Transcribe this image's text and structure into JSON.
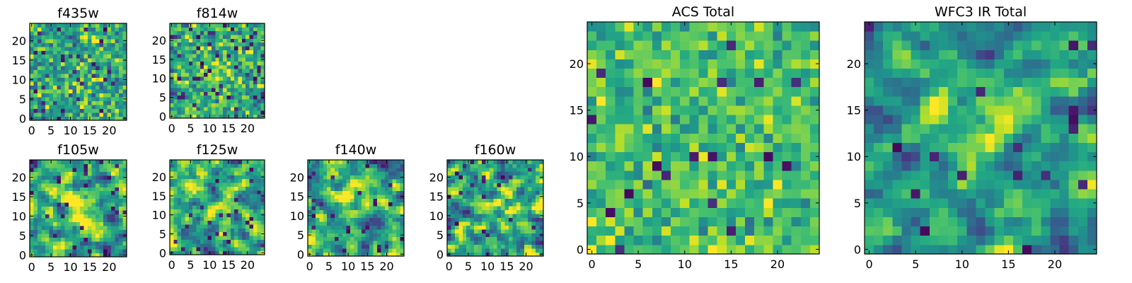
{
  "chart_data": [
    {
      "type": "heatmap",
      "title": "f435w",
      "xlim": [
        -0.5,
        24.5
      ],
      "ylim": [
        -0.5,
        24.5
      ],
      "x_ticks": [
        0,
        5,
        10,
        15,
        20
      ],
      "y_ticks": [
        0,
        5,
        10,
        15,
        20
      ],
      "x_tick_labels": [
        "0",
        "5",
        "10",
        "15",
        "20"
      ],
      "y_tick_labels": [
        "0",
        "5",
        "10",
        "15",
        "20"
      ],
      "colormap": "viridis",
      "grid_size": [
        25,
        25
      ],
      "texture": "pixel noise, no visible source"
    },
    {
      "type": "heatmap",
      "title": "f814w",
      "xlim": [
        -0.5,
        24.5
      ],
      "ylim": [
        -0.5,
        24.5
      ],
      "x_ticks": [
        0,
        5,
        10,
        15,
        20
      ],
      "y_ticks": [
        0,
        5,
        10,
        15,
        20
      ],
      "x_tick_labels": [
        "0",
        "5",
        "10",
        "15",
        "20"
      ],
      "y_tick_labels": [
        "0",
        "5",
        "10",
        "15",
        "20"
      ],
      "colormap": "viridis",
      "grid_size": [
        25,
        25
      ],
      "texture": "pixel noise, faint central source"
    },
    {
      "type": "heatmap",
      "title": "f105w",
      "xlim": [
        -0.5,
        24.5
      ],
      "ylim": [
        -0.5,
        24.5
      ],
      "x_ticks": [
        0,
        5,
        10,
        15,
        20
      ],
      "y_ticks": [
        0,
        5,
        10,
        15,
        20
      ],
      "x_tick_labels": [
        "0",
        "5",
        "10",
        "15",
        "20"
      ],
      "y_tick_labels": [
        "0",
        "5",
        "10",
        "15",
        "20"
      ],
      "colormap": "viridis",
      "grid_size": [
        25,
        25
      ],
      "texture": "smooth noise, central source"
    },
    {
      "type": "heatmap",
      "title": "f125w",
      "xlim": [
        -0.5,
        24.5
      ],
      "ylim": [
        -0.5,
        24.5
      ],
      "x_ticks": [
        0,
        5,
        10,
        15,
        20
      ],
      "y_ticks": [
        0,
        5,
        10,
        15,
        20
      ],
      "x_tick_labels": [
        "0",
        "5",
        "10",
        "15",
        "20"
      ],
      "y_tick_labels": [
        "0",
        "5",
        "10",
        "15",
        "20"
      ],
      "colormap": "viridis",
      "grid_size": [
        25,
        25
      ],
      "texture": "smooth noise, central source"
    },
    {
      "type": "heatmap",
      "title": "f140w",
      "xlim": [
        -0.5,
        24.5
      ],
      "ylim": [
        -0.5,
        24.5
      ],
      "x_ticks": [
        0,
        5,
        10,
        15,
        20
      ],
      "y_ticks": [
        0,
        5,
        10,
        15,
        20
      ],
      "x_tick_labels": [
        "0",
        "5",
        "10",
        "15",
        "20"
      ],
      "y_tick_labels": [
        "0",
        "5",
        "10",
        "15",
        "20"
      ],
      "colormap": "viridis",
      "grid_size": [
        25,
        25
      ],
      "texture": "smooth noise, central source"
    },
    {
      "type": "heatmap",
      "title": "f160w",
      "xlim": [
        -0.5,
        24.5
      ],
      "ylim": [
        -0.5,
        24.5
      ],
      "x_ticks": [
        0,
        5,
        10,
        15,
        20
      ],
      "y_ticks": [
        0,
        5,
        10,
        15,
        20
      ],
      "x_tick_labels": [
        "0",
        "5",
        "10",
        "15",
        "20"
      ],
      "y_tick_labels": [
        "0",
        "5",
        "10",
        "15",
        "20"
      ],
      "colormap": "viridis",
      "grid_size": [
        25,
        25
      ],
      "texture": "smooth noise, central source"
    },
    {
      "type": "heatmap",
      "title": "ACS Total",
      "xlim": [
        -0.5,
        24.5
      ],
      "ylim": [
        -0.5,
        24.5
      ],
      "x_ticks": [
        0,
        5,
        10,
        15,
        20
      ],
      "y_ticks": [
        0,
        5,
        10,
        15,
        20
      ],
      "x_tick_labels": [
        "0",
        "5",
        "10",
        "15",
        "20"
      ],
      "y_tick_labels": [
        "0",
        "5",
        "10",
        "15",
        "20"
      ],
      "colormap": "viridis",
      "grid_size": [
        25,
        25
      ],
      "texture": "pixel noise, mostly green-yellow"
    },
    {
      "type": "heatmap",
      "title": "WFC3 IR Total",
      "xlim": [
        -0.5,
        24.5
      ],
      "ylim": [
        -0.5,
        24.5
      ],
      "x_ticks": [
        0,
        5,
        10,
        15,
        20
      ],
      "y_ticks": [
        0,
        5,
        10,
        15,
        20
      ],
      "x_tick_labels": [
        "0",
        "5",
        "10",
        "15",
        "20"
      ],
      "y_tick_labels": [
        "0",
        "5",
        "10",
        "15",
        "20"
      ],
      "colormap": "viridis",
      "grid_size": [
        25,
        25
      ],
      "texture": "smooth noise, bright central source near (12,13)"
    }
  ]
}
